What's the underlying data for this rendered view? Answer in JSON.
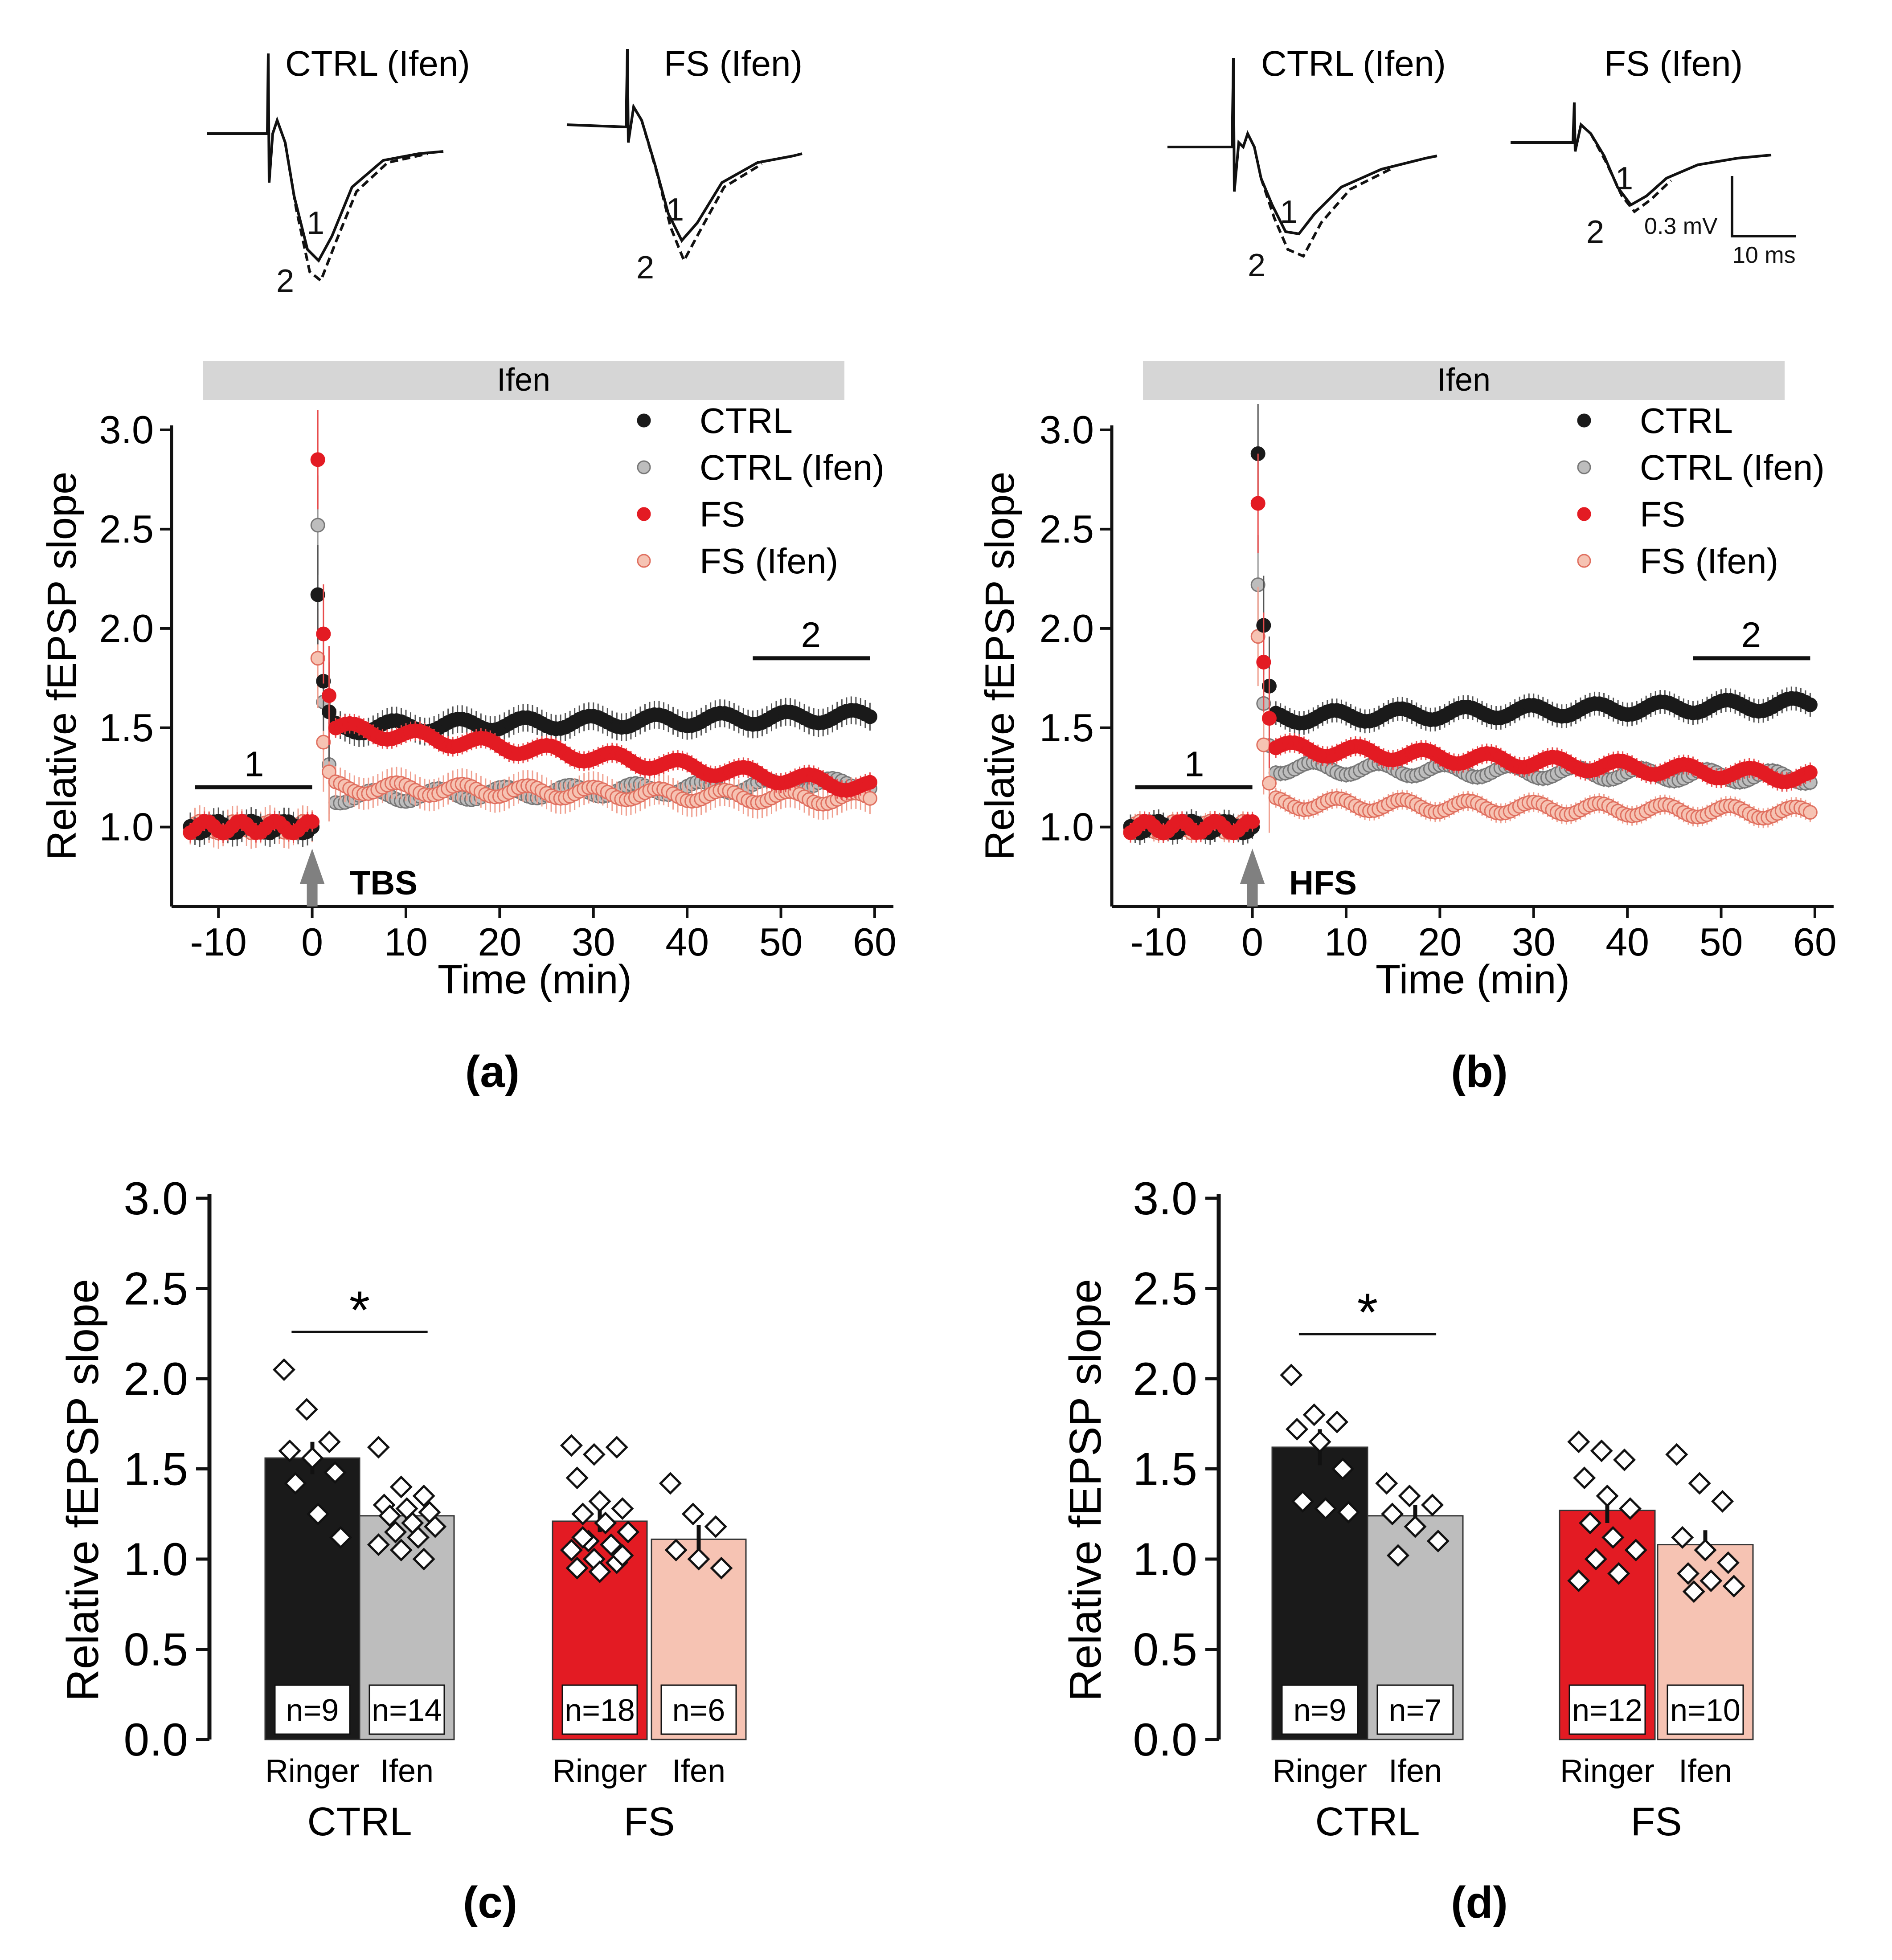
{
  "figure": {
    "labels": {
      "a": "(a)",
      "b": "(b)",
      "c": "(c)",
      "d": "(d)"
    }
  },
  "colors": {
    "ctrl": "#1a1a1a",
    "ctrl_ifen": "#bdbdbd",
    "fs": "#e31b23",
    "fs_ifen": "#f6c3b3",
    "ifen_bar": "#d6d6d6",
    "sem_ctrl": "#555555",
    "sem_ctrl_ifen": "#9a9a9a",
    "sem_fs": "#e84c4c",
    "sem_fs_ifen": "#f0a090"
  },
  "traces": {
    "a_left_label": "CTRL (Ifen)",
    "a_right_label": "FS (Ifen)",
    "b_left_label": "CTRL (Ifen)",
    "b_right_label": "FS (Ifen)",
    "marker_1": "1",
    "marker_2": "2",
    "scale_voltage": "0.3 mV",
    "scale_time": "10 ms"
  },
  "chart_data": [
    {
      "id": "a",
      "type": "scatter",
      "xlabel": "Time (min)",
      "ylabel": "Relative fEPSP slope",
      "xlim": [
        -15,
        62
      ],
      "ylim": [
        0.6,
        3.0
      ],
      "xticks": [
        -10,
        0,
        10,
        20,
        30,
        40,
        50,
        60
      ],
      "yticks": [
        1.0,
        1.5,
        2.0,
        2.5,
        3.0
      ],
      "drug_bar_label": "Ifen",
      "stimulus": "TBS",
      "baseline_label": "1",
      "post_label": "2",
      "legend": [
        "CTRL",
        "CTRL (Ifen)",
        "FS",
        "FS (Ifen)"
      ],
      "series": [
        {
          "name": "CTRL",
          "key": "ctrl",
          "baseline": 1.0,
          "peak": 2.17,
          "post_start": 1.5,
          "post_end": 1.56,
          "sem": 0.07
        },
        {
          "name": "CTRL (Ifen)",
          "key": "ctrl_ifen",
          "baseline": 1.0,
          "peak": 2.52,
          "post_start": 1.15,
          "post_end": 1.22,
          "sem": 0.03
        },
        {
          "name": "FS",
          "key": "fs",
          "baseline": 1.0,
          "peak": 2.85,
          "post_start": 1.5,
          "post_end": 1.2,
          "sem": 0.05
        },
        {
          "name": "FS (Ifen)",
          "key": "fs_ifen",
          "baseline": 1.0,
          "peak": 1.85,
          "post_start": 1.2,
          "post_end": 1.14,
          "sem": 0.08
        }
      ]
    },
    {
      "id": "b",
      "type": "scatter",
      "xlabel": "Time (min)",
      "ylabel": "Relative fEPSP slope",
      "xlim": [
        -15,
        62
      ],
      "ylim": [
        0.6,
        3.0
      ],
      "xticks": [
        -10,
        0,
        10,
        20,
        30,
        40,
        50,
        60
      ],
      "yticks": [
        1.0,
        1.5,
        2.0,
        2.5,
        3.0
      ],
      "drug_bar_label": "Ifen",
      "stimulus": "HFS",
      "baseline_label": "1",
      "post_label": "2",
      "legend": [
        "CTRL",
        "CTRL (Ifen)",
        "FS",
        "FS (Ifen)"
      ],
      "series": [
        {
          "name": "CTRL",
          "key": "ctrl",
          "baseline": 1.0,
          "peak": 2.88,
          "post_start": 1.55,
          "post_end": 1.62,
          "sem": 0.06
        },
        {
          "name": "CTRL (Ifen)",
          "key": "ctrl_ifen",
          "baseline": 1.0,
          "peak": 2.22,
          "post_start": 1.3,
          "post_end": 1.25,
          "sem": 0.04
        },
        {
          "name": "FS",
          "key": "fs",
          "baseline": 1.0,
          "peak": 2.63,
          "post_start": 1.4,
          "post_end": 1.25,
          "sem": 0.05
        },
        {
          "name": "FS (Ifen)",
          "key": "fs_ifen",
          "baseline": 1.0,
          "peak": 1.96,
          "post_start": 1.12,
          "post_end": 1.07,
          "sem": 0.05
        }
      ]
    },
    {
      "id": "c",
      "type": "bar",
      "ylabel": "Relative fEPSP slope",
      "ylim": [
        0,
        3.0
      ],
      "yticks": [
        0.0,
        0.5,
        1.0,
        1.5,
        2.0,
        2.5,
        3.0
      ],
      "significance": {
        "label": "*",
        "between": [
          0,
          1
        ]
      },
      "groups": [
        "CTRL",
        "FS"
      ],
      "bars": [
        {
          "category": "Ringer",
          "group": "CTRL",
          "value": 1.56,
          "sem": 0.09,
          "n_label": "n=9",
          "key": "ctrl",
          "points": [
            2.05,
            1.83,
            1.65,
            1.6,
            1.56,
            1.48,
            1.42,
            1.25,
            1.12
          ]
        },
        {
          "category": "Ifen",
          "group": "CTRL",
          "value": 1.24,
          "sem": 0.05,
          "n_label": "n=14",
          "key": "ctrl_ifen",
          "points": [
            1.62,
            1.4,
            1.35,
            1.3,
            1.28,
            1.26,
            1.24,
            1.2,
            1.18,
            1.15,
            1.12,
            1.08,
            1.05,
            1.0
          ]
        },
        {
          "category": "Ringer",
          "group": "FS",
          "value": 1.21,
          "sem": 0.06,
          "n_label": "n=18",
          "key": "fs",
          "points": [
            1.63,
            1.58,
            1.62,
            1.45,
            1.32,
            1.28,
            1.25,
            1.2,
            1.15,
            1.1,
            1.08,
            1.05,
            1.0,
            0.98,
            0.95,
            0.93,
            1.02,
            1.12
          ]
        },
        {
          "category": "Ifen",
          "group": "FS",
          "value": 1.11,
          "sem": 0.08,
          "n_label": "n=6",
          "key": "fs_ifen",
          "points": [
            1.42,
            1.25,
            1.18,
            1.05,
            1.0,
            0.95
          ]
        }
      ]
    },
    {
      "id": "d",
      "type": "bar",
      "ylabel": "Relative fEPSP slope",
      "ylim": [
        0,
        3.0
      ],
      "yticks": [
        0.0,
        0.5,
        1.0,
        1.5,
        2.0,
        2.5,
        3.0
      ],
      "significance": {
        "label": "*",
        "between": [
          0,
          1
        ]
      },
      "groups": [
        "CTRL",
        "FS"
      ],
      "bars": [
        {
          "category": "Ringer",
          "group": "CTRL",
          "value": 1.62,
          "sem": 0.1,
          "n_label": "n=9",
          "key": "ctrl",
          "points": [
            2.02,
            1.8,
            1.76,
            1.72,
            1.65,
            1.5,
            1.32,
            1.28,
            1.26
          ]
        },
        {
          "category": "Ifen",
          "group": "CTRL",
          "value": 1.24,
          "sem": 0.06,
          "n_label": "n=7",
          "key": "ctrl_ifen",
          "points": [
            1.42,
            1.35,
            1.3,
            1.25,
            1.18,
            1.1,
            1.02
          ]
        },
        {
          "category": "Ringer",
          "group": "FS",
          "value": 1.27,
          "sem": 0.07,
          "n_label": "n=12",
          "key": "fs",
          "points": [
            1.65,
            1.6,
            1.55,
            1.45,
            1.35,
            1.28,
            1.2,
            1.12,
            1.05,
            1.0,
            0.92,
            0.88
          ]
        },
        {
          "category": "Ifen",
          "group": "FS",
          "value": 1.08,
          "sem": 0.08,
          "n_label": "n=10",
          "key": "fs_ifen",
          "points": [
            1.58,
            1.42,
            1.32,
            1.12,
            1.05,
            0.98,
            0.92,
            0.88,
            0.85,
            0.82
          ]
        }
      ]
    }
  ]
}
